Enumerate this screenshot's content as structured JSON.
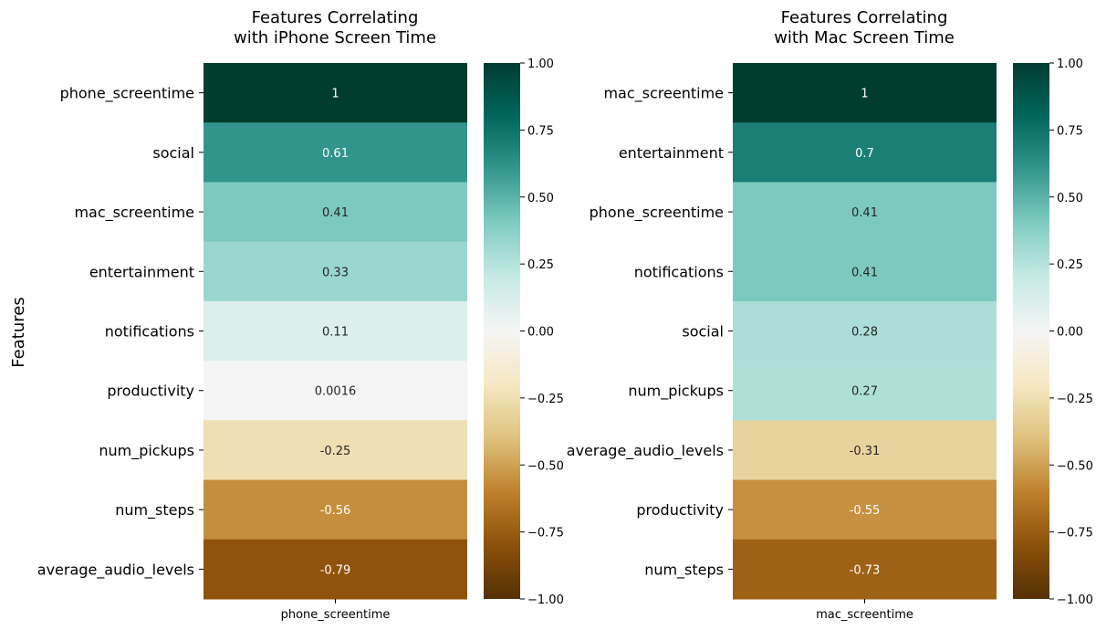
{
  "figure": {
    "ylabel": "Features"
  },
  "chart_data": [
    {
      "type": "heatmap",
      "title_lines": [
        "Features Correlating",
        "with iPhone Screen Time"
      ],
      "xlabel": "phone_screentime",
      "ylabel": "Features",
      "categories": [
        "phone_screentime",
        "social",
        "mac_screentime",
        "entertainment",
        "notifications",
        "productivity",
        "num_pickups",
        "num_steps",
        "average_audio_levels"
      ],
      "values": [
        1,
        0.61,
        0.41,
        0.33,
        0.11,
        0.0016,
        -0.25,
        -0.56,
        -0.79
      ],
      "labels": [
        "1",
        "0.61",
        "0.41",
        "0.33",
        "0.11",
        "0.0016",
        "-0.25",
        "-0.56",
        "-0.79"
      ],
      "colorbar": {
        "range": [
          -1,
          1
        ],
        "ticks": [
          "1.00",
          "0.75",
          "0.50",
          "0.25",
          "0.00",
          "−0.25",
          "−0.50",
          "−0.75",
          "−1.00"
        ],
        "colormap": "BrBG"
      }
    },
    {
      "type": "heatmap",
      "title_lines": [
        "Features Correlating",
        "with Mac Screen Time"
      ],
      "xlabel": "mac_screentime",
      "ylabel": "",
      "categories": [
        "mac_screentime",
        "entertainment",
        "phone_screentime",
        "notifications",
        "social",
        "num_pickups",
        "average_audio_levels",
        "productivity",
        "num_steps"
      ],
      "values": [
        1,
        0.7,
        0.41,
        0.41,
        0.28,
        0.27,
        -0.31,
        -0.55,
        -0.73
      ],
      "labels": [
        "1",
        "0.7",
        "0.41",
        "0.41",
        "0.28",
        "0.27",
        "-0.31",
        "-0.55",
        "-0.73"
      ],
      "colorbar": {
        "range": [
          -1,
          1
        ],
        "ticks": [
          "1.00",
          "0.75",
          "0.50",
          "0.25",
          "0.00",
          "−0.25",
          "−0.50",
          "−0.75",
          "−1.00"
        ],
        "colormap": "BrBG"
      }
    }
  ]
}
